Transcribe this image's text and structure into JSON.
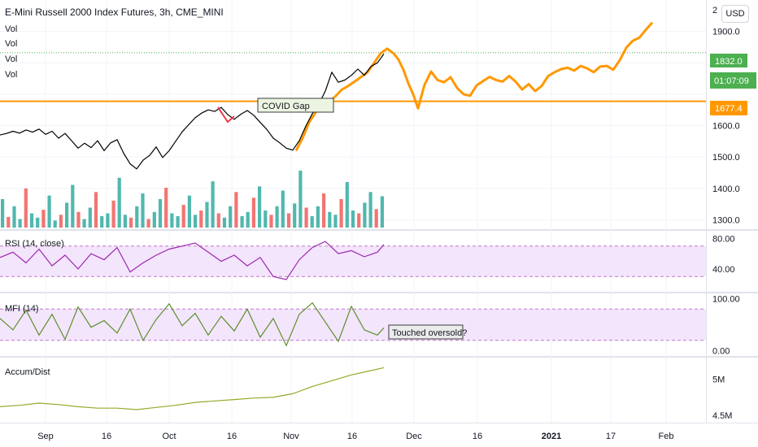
{
  "header": {
    "symbol_title": "E-Mini Russell 2000 Index Futures, 3h, CME_MINI",
    "indicator_labels": [
      "Vol",
      "Vol",
      "Vol",
      "Vol"
    ],
    "currency_button": "USD"
  },
  "price_badges": {
    "last_price": "1832.0",
    "countdown": "01:07:09",
    "line_price": "1677.4",
    "top_cut_label": "2"
  },
  "annotations": {
    "covid_gap": "COVID Gap",
    "touched_oversold": "Touched oversold?"
  },
  "colors": {
    "price_line": "#000000",
    "projection": "#ff9800",
    "horizontal_line": "#ff9800",
    "last_price_badge": "#4caf50",
    "volume_up": "#26a69a",
    "volume_down": "#ef5350",
    "rsi_line": "#9c27b0",
    "rsi_band": "#f3e5fc",
    "mfi_line": "#5b8f2a",
    "accum_line": "#9aa72a",
    "red_mark": "#f23645"
  },
  "chart_data": [
    {
      "type": "line",
      "title": "E-Mini Russell 2000 Index Futures, 3h, CME_MINI",
      "x_ticks": [
        "Sep",
        "16",
        "Oct",
        "16",
        "Nov",
        "16",
        "Dec",
        "16",
        "2021",
        "17",
        "Feb"
      ],
      "y_ticks": [
        1300.0,
        1400.0,
        1500.0,
        1600.0,
        1700.0,
        1800.0,
        1900.0
      ],
      "y_tick_labels": [
        "1300.0",
        "1400.0",
        "1500.0",
        "1600.0",
        "",
        "",
        "1900.0"
      ],
      "ylim": [
        1270,
        2000
      ],
      "horizontal_line": 1677.4,
      "last_price": 1832.0,
      "series": [
        {
          "x": [
            0,
            8,
            16,
            24,
            32,
            40,
            48,
            56,
            64,
            72,
            80,
            88,
            96,
            104,
            112,
            120,
            128,
            136,
            144,
            152,
            160,
            168,
            176,
            184,
            192,
            200,
            208,
            216,
            224,
            232,
            240,
            248,
            256,
            264,
            272,
            280,
            288,
            296,
            304,
            312,
            320,
            328,
            336,
            344,
            352,
            360,
            368,
            376,
            384,
            392,
            400,
            408,
            416,
            424,
            432,
            440,
            448,
            456,
            464,
            472
          ],
          "values": [
            1570,
            1575,
            1582,
            1576,
            1586,
            1579,
            1589,
            1572,
            1582,
            1560,
            1575,
            1552,
            1528,
            1544,
            1530,
            1552,
            1520,
            1545,
            1555,
            1512,
            1478,
            1462,
            1490,
            1505,
            1532,
            1498,
            1520,
            1550,
            1580,
            1603,
            1625,
            1640,
            1650,
            1645,
            1658,
            1635,
            1620,
            1636,
            1648,
            1633,
            1610,
            1588,
            1560,
            1545,
            1528,
            1522,
            1552,
            1598,
            1638,
            1668,
            1710,
            1770,
            1738,
            1745,
            1760,
            1780,
            1760,
            1788,
            1800,
            1828
          ]
        },
        {
          "x": [
            364,
            372,
            380,
            388,
            396,
            404,
            412,
            420,
            428,
            436,
            444,
            452,
            460,
            468,
            476,
            484,
            490,
            496,
            502,
            508,
            514,
            522,
            530,
            538,
            546,
            554,
            562,
            570,
            578,
            586,
            594,
            602,
            610,
            618,
            626,
            634,
            642,
            650,
            658,
            666,
            674,
            682,
            690,
            698,
            706,
            714,
            722,
            730,
            738,
            746,
            754,
            762,
            770,
            778,
            786,
            794,
            802
          ],
          "values": [
            1520,
            1560,
            1610,
            1642,
            1662,
            1675,
            1692,
            1714,
            1726,
            1740,
            1755,
            1770,
            1800,
            1830,
            1845,
            1830,
            1810,
            1778,
            1735,
            1700,
            1655,
            1730,
            1772,
            1745,
            1738,
            1754,
            1720,
            1700,
            1695,
            1728,
            1742,
            1755,
            1745,
            1740,
            1758,
            1740,
            1715,
            1732,
            1710,
            1726,
            1758,
            1770,
            1780,
            1784,
            1775,
            1790,
            1782,
            1770,
            1788,
            1790,
            1778,
            1808,
            1848,
            1870,
            1880,
            1905,
            1928
          ]
        }
      ]
    },
    {
      "type": "bar",
      "title": "Vol",
      "bars": 66,
      "values": [
        40,
        15,
        30,
        12,
        55,
        20,
        14,
        25,
        45,
        10,
        18,
        35,
        60,
        22,
        12,
        28,
        50,
        16,
        20,
        38,
        70,
        18,
        14,
        30,
        48,
        12,
        22,
        40,
        56,
        20,
        16,
        32,
        45,
        18,
        24,
        36,
        65,
        20,
        14,
        30,
        50,
        16,
        22,
        42,
        58,
        24,
        18,
        30,
        52,
        20,
        34,
        80,
        28,
        16,
        30,
        48,
        22,
        18,
        40,
        64,
        24,
        20,
        35,
        50,
        26,
        44
      ]
    },
    {
      "type": "line",
      "title": "RSI (14, close)",
      "y_ticks": [
        40,
        80
      ],
      "y_tick_labels": [
        "40.00",
        "80.00"
      ],
      "band": [
        30,
        70
      ],
      "ylim": [
        10,
        90
      ],
      "x": [
        0,
        16,
        32,
        48,
        64,
        80,
        96,
        112,
        128,
        144,
        160,
        176,
        192,
        208,
        224,
        240,
        256,
        272,
        288,
        304,
        320,
        336,
        352,
        368,
        384,
        400,
        416,
        432,
        448,
        464,
        472
      ],
      "values": [
        55,
        62,
        48,
        66,
        44,
        58,
        40,
        60,
        52,
        68,
        36,
        48,
        58,
        66,
        70,
        74,
        62,
        50,
        58,
        44,
        55,
        30,
        26,
        52,
        68,
        76,
        60,
        64,
        56,
        62,
        72
      ]
    },
    {
      "type": "line",
      "title": "MFI (14)",
      "y_ticks": [
        0,
        100
      ],
      "y_tick_labels": [
        "0.00",
        "100.00"
      ],
      "band": [
        20,
        80
      ],
      "ylim": [
        -10,
        110
      ],
      "x": [
        0,
        16,
        32,
        48,
        64,
        80,
        96,
        112,
        128,
        144,
        160,
        176,
        192,
        208,
        224,
        240,
        256,
        272,
        288,
        304,
        320,
        336,
        352,
        368,
        384,
        400,
        416,
        432,
        448,
        464,
        472
      ],
      "values": [
        62,
        40,
        78,
        30,
        70,
        22,
        84,
        45,
        58,
        34,
        80,
        20,
        60,
        90,
        48,
        72,
        30,
        66,
        38,
        80,
        26,
        62,
        10,
        70,
        92,
        55,
        18,
        85,
        40,
        30,
        44
      ]
    },
    {
      "type": "line",
      "title": "Accum/Dist",
      "y_ticks": [
        4.5,
        5
      ],
      "y_tick_labels": [
        "4.5M",
        "5M"
      ],
      "ylim": [
        4.4,
        5.3
      ],
      "x": [
        0,
        24,
        48,
        72,
        96,
        120,
        144,
        168,
        192,
        216,
        240,
        264,
        288,
        312,
        336,
        360,
        384,
        408,
        432,
        456,
        472
      ],
      "values": [
        4.62,
        4.64,
        4.67,
        4.65,
        4.62,
        4.6,
        4.6,
        4.58,
        4.61,
        4.64,
        4.68,
        4.7,
        4.72,
        4.74,
        4.75,
        4.8,
        4.9,
        4.98,
        5.06,
        5.12,
        5.16
      ]
    }
  ]
}
